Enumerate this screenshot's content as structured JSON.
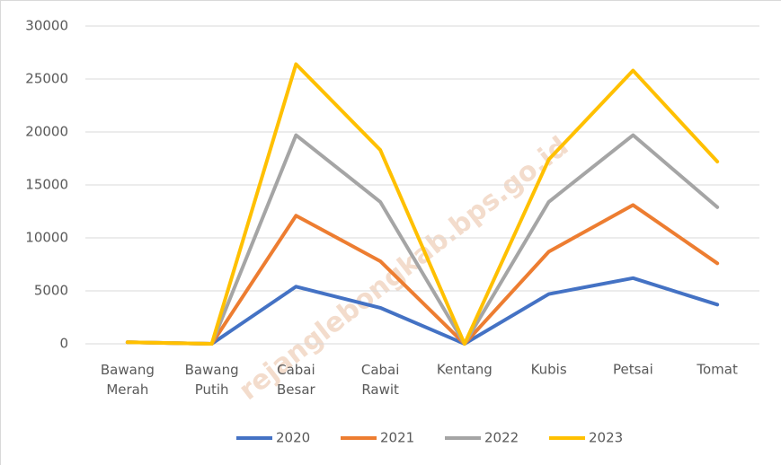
{
  "chart_data": {
    "type": "line",
    "categories": [
      "Bawang Merah",
      "Bawang Putih",
      "Cabai Besar",
      "Cabai Rawit",
      "Kentang",
      "Kubis",
      "Petsai",
      "Tomat"
    ],
    "series": [
      {
        "name": "2020",
        "color": "#4472c4",
        "values": [
          150,
          0,
          5400,
          3400,
          0,
          4700,
          6200,
          3700
        ]
      },
      {
        "name": "2021",
        "color": "#ed7d31",
        "values": [
          150,
          0,
          12100,
          7800,
          0,
          8700,
          13100,
          7600
        ]
      },
      {
        "name": "2022",
        "color": "#a5a5a5",
        "values": [
          150,
          0,
          19700,
          13400,
          0,
          13400,
          19700,
          12900
        ]
      },
      {
        "name": "2023",
        "color": "#ffc000",
        "values": [
          150,
          0,
          26400,
          18300,
          0,
          17400,
          25800,
          17200
        ]
      }
    ],
    "ylim": [
      0,
      30000
    ],
    "yticks": [
      0,
      5000,
      10000,
      15000,
      20000,
      25000,
      30000
    ],
    "grid": true,
    "legend": "bottom",
    "watermark": "rejanglebongkab.bps.go.id"
  }
}
